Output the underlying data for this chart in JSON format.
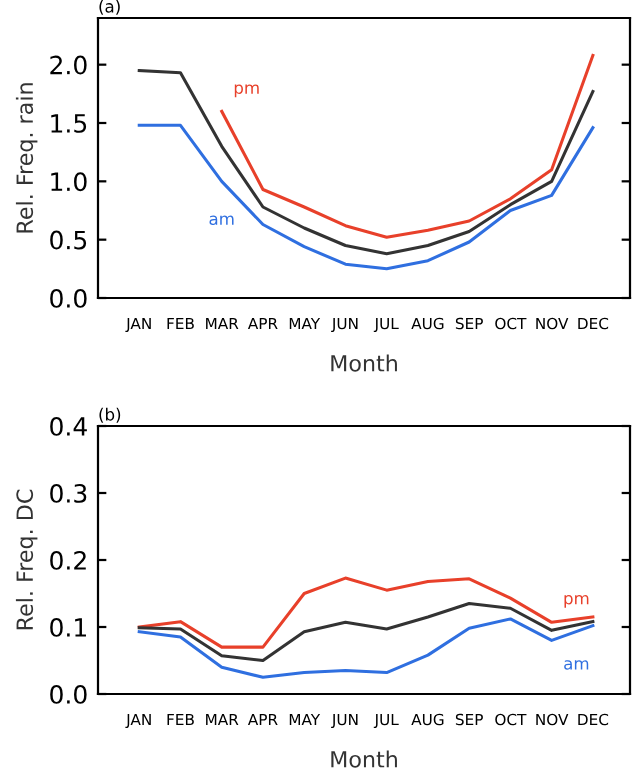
{
  "chart_data": [
    {
      "type": "line",
      "title": "(a)",
      "xlabel": "Month",
      "ylabel": "Rel. Freq. rain",
      "categories": [
        "JAN",
        "FEB",
        "MAR",
        "APR",
        "MAY",
        "JUN",
        "JUL",
        "AUG",
        "SEP",
        "OCT",
        "NOV",
        "DEC"
      ],
      "ylim": [
        0,
        2.4
      ],
      "yticks": [
        {
          "value": 0,
          "label": "0.0"
        },
        0.5,
        {
          "value": 1,
          "label": "1.0"
        },
        1.5,
        {
          "value": 2,
          "label": "2.0"
        }
      ],
      "grid": false,
      "legend": false,
      "marker": "none",
      "line_style": "solid",
      "series": [
        {
          "name": "pm",
          "color": "#e8402a",
          "values": [
            null,
            null,
            1.6,
            0.93,
            0.78,
            0.62,
            0.52,
            0.58,
            0.66,
            0.85,
            1.1,
            2.08
          ]
        },
        {
          "color": "#333333",
          "values": [
            1.95,
            1.93,
            1.3,
            0.78,
            0.6,
            0.45,
            0.38,
            0.45,
            0.57,
            0.8,
            1.0,
            1.77
          ]
        },
        {
          "name": "am",
          "color": "#2f6fe0",
          "values": [
            1.48,
            1.48,
            1.0,
            0.63,
            0.44,
            0.29,
            0.25,
            0.32,
            0.48,
            0.75,
            0.88,
            1.46
          ]
        }
      ]
    },
    {
      "type": "line",
      "title": "(b)",
      "xlabel": "Month",
      "ylabel": "Rel. Freq. DC",
      "categories": [
        "JAN",
        "FEB",
        "MAR",
        "APR",
        "MAY",
        "JUN",
        "JUL",
        "AUG",
        "SEP",
        "OCT",
        "NOV",
        "DEC"
      ],
      "ylim": [
        0,
        0.4
      ],
      "yticks": [
        {
          "value": 0,
          "label": "0.0"
        },
        0.1,
        0.2,
        0.3,
        0.4
      ],
      "grid": false,
      "legend": false,
      "marker": "none",
      "line_style": "solid",
      "series": [
        {
          "name": "pm",
          "color": "#e8402a",
          "values": [
            0.1,
            0.108,
            0.07,
            0.07,
            0.15,
            0.173,
            0.155,
            0.168,
            0.172,
            0.143,
            0.107,
            0.115
          ]
        },
        {
          "color": "#333333",
          "values": [
            0.099,
            0.097,
            0.057,
            0.05,
            0.093,
            0.107,
            0.097,
            0.115,
            0.135,
            0.128,
            0.095,
            0.108
          ]
        },
        {
          "name": "am",
          "color": "#2f6fe0",
          "values": [
            0.093,
            0.085,
            0.04,
            0.025,
            0.032,
            0.035,
            0.032,
            0.058,
            0.098,
            0.112,
            0.08,
            0.102
          ]
        }
      ]
    }
  ]
}
